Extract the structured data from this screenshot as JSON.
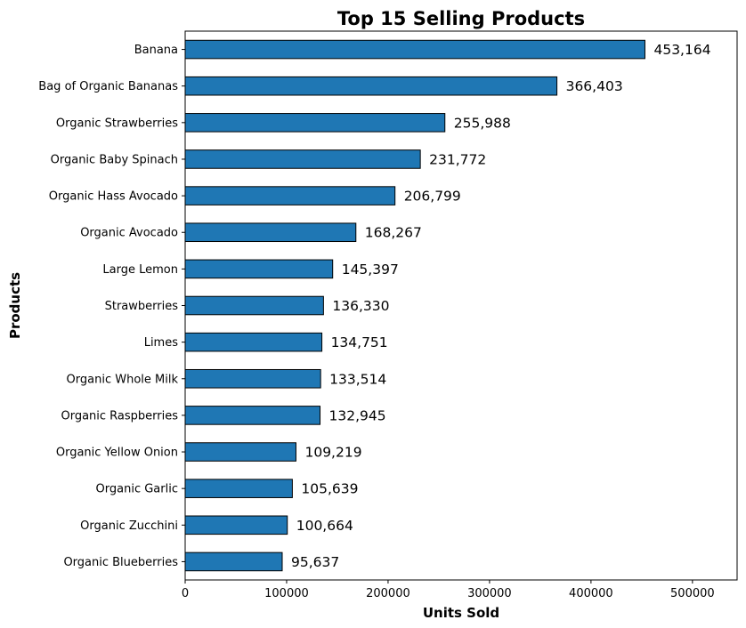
{
  "chart_data": {
    "type": "bar",
    "orientation": "horizontal",
    "title": "Top 15 Selling Products",
    "xlabel": "Units Sold",
    "ylabel": "Products",
    "xlim": [
      0,
      544000
    ],
    "xticks": [
      0,
      100000,
      200000,
      300000,
      400000,
      500000
    ],
    "xtick_labels": [
      "0",
      "100000",
      "200000",
      "300000",
      "400000",
      "500000"
    ],
    "grid": false,
    "bar_color": "#1f77b4",
    "bar_edge_color": "#000000",
    "categories": [
      "Banana",
      "Bag of Organic Bananas",
      "Organic Strawberries",
      "Organic Baby Spinach",
      "Organic Hass Avocado",
      "Organic Avocado",
      "Large Lemon",
      "Strawberries",
      "Limes",
      "Organic Whole Milk",
      "Organic Raspberries",
      "Organic Yellow Onion",
      "Organic Garlic",
      "Organic Zucchini",
      "Organic Blueberries"
    ],
    "values": [
      453164,
      366403,
      255988,
      231772,
      206799,
      168267,
      145397,
      136330,
      134751,
      133514,
      132945,
      109219,
      105639,
      100664,
      95637
    ],
    "value_labels": [
      "453,164",
      "366,403",
      "255,988",
      "231,772",
      "206,799",
      "168,267",
      "145,397",
      "136,330",
      "134,751",
      "133,514",
      "132,945",
      "109,219",
      "105,639",
      "100,664",
      "95,637"
    ]
  }
}
